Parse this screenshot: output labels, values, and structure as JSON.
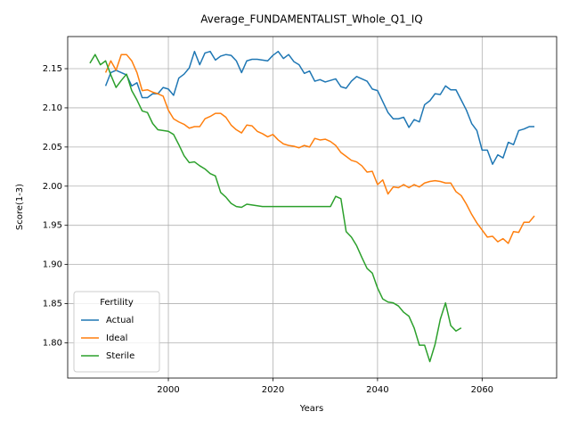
{
  "chart_data": {
    "type": "line",
    "title": "Average_FUNDAMENTALIST_Whole_Q1_IQ",
    "x_label": "Years",
    "y_label": "Score(1-3)",
    "legend_title": "Fertility",
    "legend_loc": "lower left",
    "grid": true,
    "x": [
      1985,
      1986,
      1987,
      1988,
      1989,
      1990,
      1991,
      1992,
      1993,
      1994,
      1995,
      1996,
      1997,
      1998,
      1999,
      2000,
      2001,
      2002,
      2003,
      2004,
      2005,
      2006,
      2007,
      2008,
      2009,
      2010,
      2011,
      2012,
      2013,
      2014,
      2015,
      2016,
      2017,
      2018,
      2019,
      2020,
      2021,
      2022,
      2023,
      2024,
      2025,
      2026,
      2027,
      2028,
      2029,
      2030,
      2031,
      2032,
      2033,
      2034,
      2035,
      2036,
      2037,
      2038,
      2039,
      2040,
      2041,
      2042,
      2043,
      2044,
      2045,
      2046,
      2047,
      2048,
      2049,
      2050,
      2051,
      2052,
      2053,
      2054,
      2055,
      2056,
      2057,
      2058,
      2059,
      2060,
      2061,
      2062,
      2063,
      2064,
      2065,
      2066,
      2067,
      2068,
      2069,
      2070
    ],
    "series": [
      {
        "name": "Actual",
        "color": "#1f77b4",
        "values": [
          null,
          null,
          null,
          2.128,
          2.145,
          2.148,
          2.145,
          2.142,
          2.128,
          2.132,
          2.113,
          2.113,
          2.118,
          2.118,
          2.126,
          2.124,
          2.116,
          2.138,
          2.143,
          2.151,
          2.172,
          2.155,
          2.17,
          2.172,
          2.161,
          2.166,
          2.168,
          2.167,
          2.16,
          2.145,
          2.16,
          2.162,
          2.162,
          2.161,
          2.16,
          2.167,
          2.172,
          2.163,
          2.168,
          2.159,
          2.155,
          2.144,
          2.147,
          2.134,
          2.136,
          2.133,
          2.135,
          2.137,
          2.127,
          2.125,
          2.134,
          2.14,
          2.137,
          2.134,
          2.124,
          2.122,
          2.108,
          2.094,
          2.086,
          2.086,
          2.088,
          2.075,
          2.085,
          2.082,
          2.104,
          2.109,
          2.118,
          2.117,
          2.128,
          2.123,
          2.123,
          2.11,
          2.097,
          2.08,
          2.071,
          2.046,
          2.046,
          2.028,
          2.04,
          2.036,
          2.056,
          2.053,
          2.071,
          2.073,
          2.076,
          2.076
        ]
      },
      {
        "name": "Ideal",
        "color": "#ff7f0e",
        "values": [
          null,
          null,
          null,
          2.145,
          2.16,
          2.148,
          2.168,
          2.168,
          2.16,
          2.145,
          2.122,
          2.123,
          2.12,
          2.118,
          2.115,
          2.097,
          2.086,
          2.082,
          2.079,
          2.074,
          2.076,
          2.076,
          2.086,
          2.089,
          2.093,
          2.093,
          2.088,
          2.078,
          2.072,
          2.068,
          2.078,
          2.077,
          2.07,
          2.067,
          2.063,
          2.066,
          2.059,
          2.054,
          2.052,
          2.051,
          2.049,
          2.052,
          2.05,
          2.061,
          2.059,
          2.06,
          2.057,
          2.052,
          2.043,
          2.038,
          2.033,
          2.031,
          2.026,
          2.018,
          2.019,
          2.002,
          2.008,
          1.99,
          1.999,
          1.998,
          2.002,
          1.998,
          2.002,
          1.999,
          2.004,
          2.006,
          2.007,
          2.006,
          2.004,
          2.004,
          1.993,
          1.988,
          1.977,
          1.964,
          1.953,
          1.944,
          1.935,
          1.936,
          1.929,
          1.933,
          1.927,
          1.942,
          1.941,
          1.954,
          1.954,
          1.962
        ]
      },
      {
        "name": "Sterile",
        "color": "#2ca02c",
        "values": [
          2.157,
          2.168,
          2.155,
          2.16,
          2.142,
          2.126,
          2.135,
          2.143,
          2.122,
          2.11,
          2.096,
          2.094,
          2.08,
          2.072,
          2.071,
          2.07,
          2.066,
          2.053,
          2.039,
          2.03,
          2.031,
          2.026,
          2.022,
          2.016,
          2.013,
          1.992,
          1.986,
          1.978,
          1.974,
          1.973,
          1.977,
          1.976,
          1.975,
          1.974,
          1.974,
          1.974,
          1.974,
          1.974,
          1.974,
          1.974,
          1.974,
          1.974,
          1.974,
          1.974,
          1.974,
          1.974,
          1.974,
          1.987,
          1.984,
          1.942,
          1.935,
          1.924,
          1.909,
          1.895,
          1.889,
          1.87,
          1.856,
          1.852,
          1.851,
          1.847,
          1.839,
          1.834,
          1.819,
          1.797,
          1.797,
          1.776,
          1.798,
          1.83,
          1.851,
          1.822,
          1.815,
          1.819,
          null,
          null,
          null,
          null,
          null,
          null,
          null,
          null,
          null,
          null,
          null,
          null,
          null,
          null
        ]
      }
    ],
    "xlim": [
      1980.75,
      2074.25
    ],
    "xticks": [
      2000,
      2020,
      2040,
      2060
    ],
    "ylim": [
      1.755,
      2.191
    ],
    "yticks": [
      {
        "value": 1.8,
        "label": "1.80"
      },
      1.85,
      {
        "value": 1.9,
        "label": "1.90"
      },
      1.95,
      {
        "value": 2.0,
        "label": "2.00"
      },
      2.05,
      {
        "value": 2.1,
        "label": "2.10"
      },
      2.15
    ]
  }
}
